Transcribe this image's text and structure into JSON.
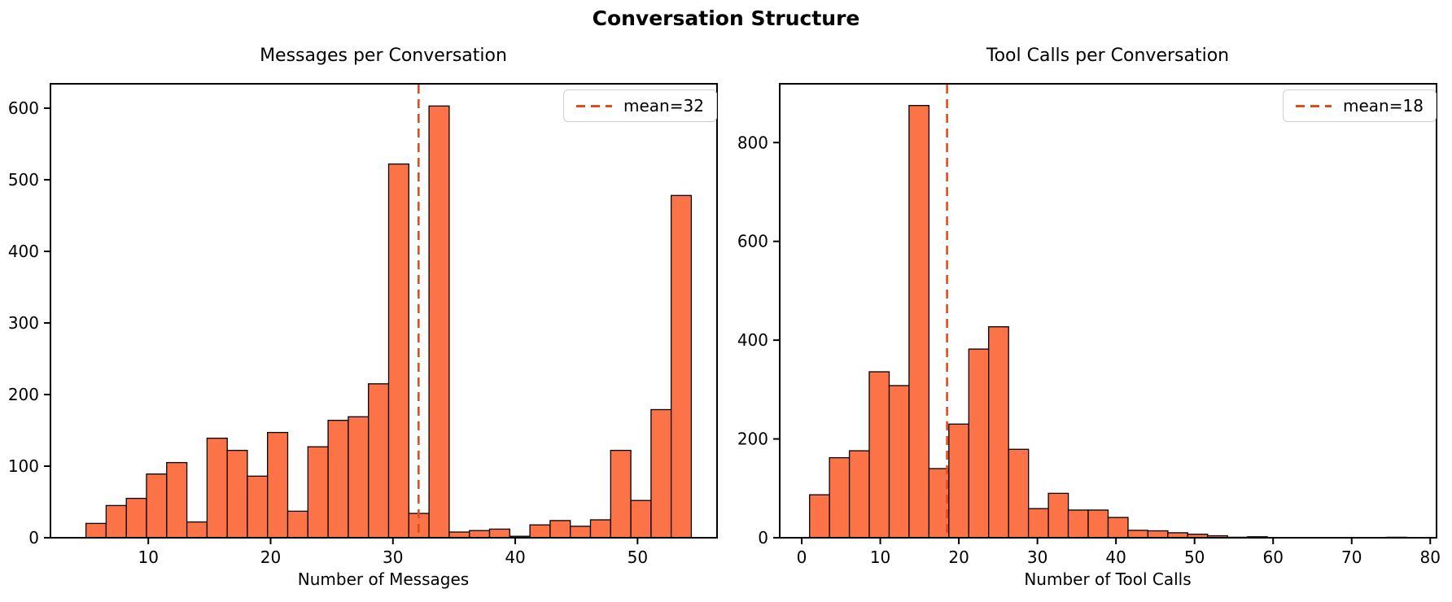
{
  "figure_title": "Conversation Structure",
  "colors": {
    "bar_fill": "#fd7348",
    "bar_edge": "#000000",
    "mean_line": "#dd4e1b",
    "axis": "#000000",
    "legend_border": "#cfcfcf",
    "background": "#ffffff"
  },
  "chart_data": [
    {
      "type": "bar",
      "title": "Messages per Conversation",
      "xlabel": "Number of Messages",
      "ylabel": "",
      "legend": {
        "label": "mean=32",
        "line_style": "dashed",
        "position": "upper right"
      },
      "mean_line_x": 32.1,
      "bins": {
        "start": 4.9,
        "width": 1.65
      },
      "values": [
        20,
        45,
        55,
        89,
        105,
        22,
        139,
        122,
        86,
        147,
        37,
        127,
        164,
        169,
        215,
        522,
        34,
        603,
        8,
        10,
        12,
        2,
        18,
        24,
        16,
        25,
        122,
        52,
        179,
        478
      ],
      "xlim": [
        2.0,
        56.5
      ],
      "ylim": [
        0,
        634
      ],
      "xticks": [
        10,
        20,
        30,
        40,
        50
      ],
      "yticks": [
        0,
        100,
        200,
        300,
        400,
        500,
        600
      ],
      "grid": false
    },
    {
      "type": "bar",
      "title": "Tool Calls per Conversation",
      "xlabel": "Number of Tool Calls",
      "ylabel": "",
      "legend": {
        "label": "mean=18",
        "line_style": "dashed",
        "position": "upper right"
      },
      "mean_line_x": 18.5,
      "bins": {
        "start": 1.0,
        "width": 2.533
      },
      "values": [
        87,
        162,
        176,
        336,
        308,
        875,
        140,
        230,
        382,
        427,
        179,
        59,
        90,
        56,
        56,
        41,
        15,
        14,
        10,
        7,
        4,
        1,
        2,
        0,
        0,
        0,
        0,
        0,
        0,
        1
      ],
      "xlim": [
        -2.8,
        80.8
      ],
      "ylim": [
        0,
        919
      ],
      "xticks": [
        0,
        10,
        20,
        30,
        40,
        50,
        60,
        70,
        80
      ],
      "yticks": [
        0,
        200,
        400,
        600,
        800
      ],
      "grid": false
    }
  ]
}
